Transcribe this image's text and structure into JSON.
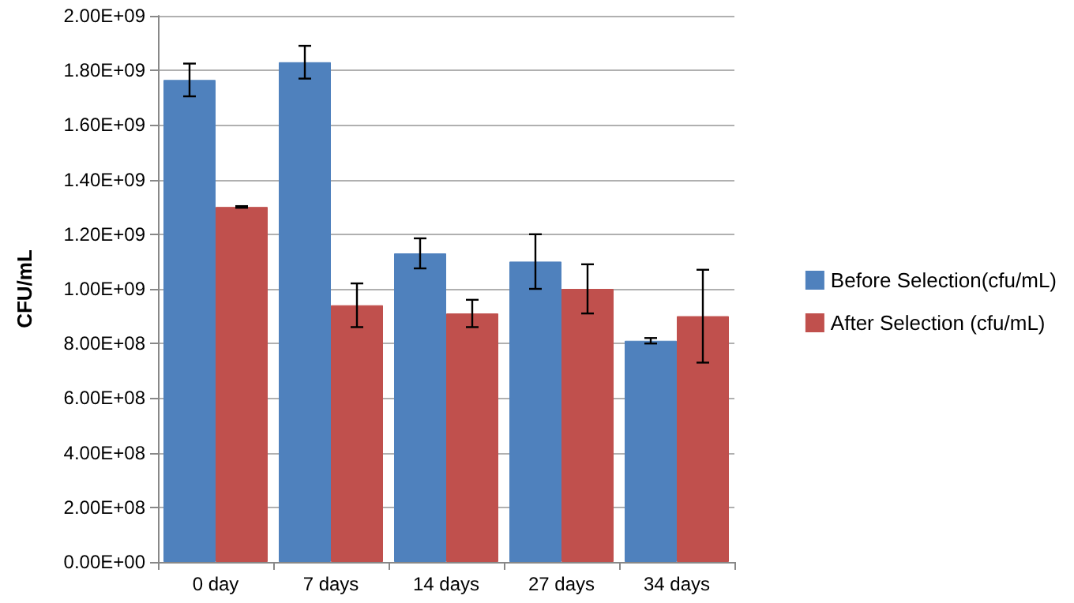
{
  "chart_data": {
    "type": "bar",
    "ylabel": "CFU/mL",
    "categories": [
      "0 day",
      "7 days",
      "14 days",
      "27 days",
      "34 days"
    ],
    "series": [
      {
        "name": "Before Selection(cfu/mL)",
        "color": "#4f81bd",
        "values": [
          1765000000,
          1830000000,
          1130000000,
          1100000000,
          810000000
        ],
        "errors": [
          60000000,
          60000000,
          55000000,
          100000000,
          10000000
        ]
      },
      {
        "name": "After Selection (cfu/mL)",
        "color": "#c0504d",
        "values": [
          1300000000,
          940000000,
          910000000,
          1000000000,
          900000000
        ],
        "errors": [
          3000000,
          80000000,
          50000000,
          90000000,
          170000000
        ]
      }
    ],
    "ylim": [
      0,
      2000000000
    ],
    "yticks": [
      {
        "value": 0,
        "label": "0.00E+00"
      },
      {
        "value": 200000000,
        "label": "2.00E+08"
      },
      {
        "value": 400000000,
        "label": "4.00E+08"
      },
      {
        "value": 600000000,
        "label": "6.00E+08"
      },
      {
        "value": 800000000,
        "label": "8.00E+08"
      },
      {
        "value": 1000000000,
        "label": "1.00E+09"
      },
      {
        "value": 1200000000,
        "label": "1.20E+09"
      },
      {
        "value": 1400000000,
        "label": "1.40E+09"
      },
      {
        "value": 1600000000,
        "label": "1.60E+09"
      },
      {
        "value": 1800000000,
        "label": "1.80E+09"
      },
      {
        "value": 2000000000,
        "label": "2.00E+09"
      }
    ],
    "grid": "y",
    "legend": "right"
  }
}
